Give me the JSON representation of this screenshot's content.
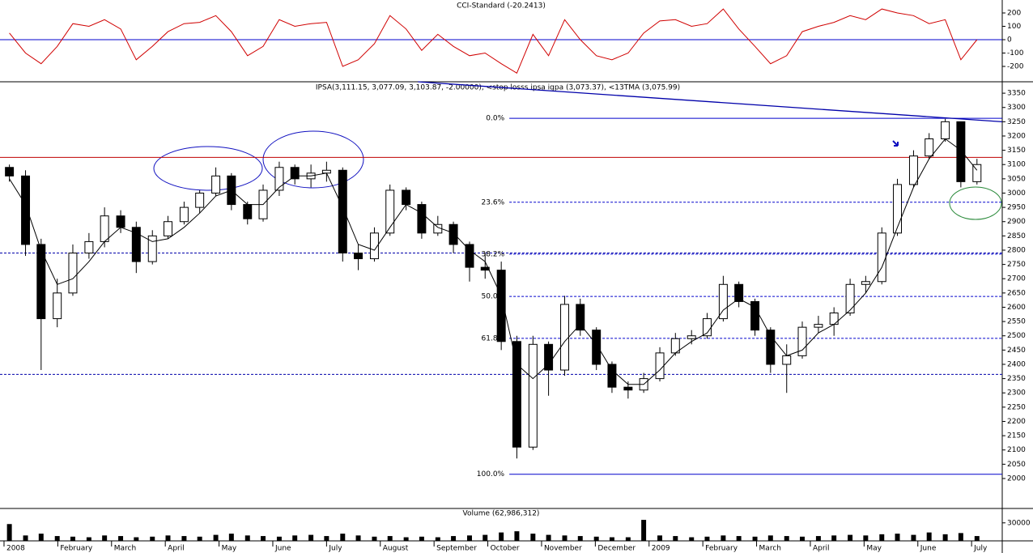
{
  "chart_data": [
    {
      "type": "line",
      "title": "CCI-Standard (-20.2413)",
      "color": "#d00000",
      "x": [
        0.1,
        0.4,
        0.69,
        0.99,
        1.28,
        1.58,
        1.87,
        2.17,
        2.46,
        2.76,
        3.05,
        3.35,
        3.64,
        3.94,
        4.23,
        4.53,
        4.82,
        5.12,
        5.41,
        5.71,
        6.0,
        6.3,
        6.59,
        6.89,
        7.18,
        7.48,
        7.77,
        8.07,
        8.36,
        8.66,
        8.95,
        9.25,
        9.54,
        9.84,
        10.13,
        10.43,
        10.72,
        11.02,
        11.31,
        11.61,
        11.9,
        12.2,
        12.49,
        12.79,
        13.08,
        13.38,
        13.67,
        13.97,
        14.26,
        14.56,
        14.85,
        15.15,
        15.44,
        15.74,
        16.03,
        16.33,
        16.62,
        16.92,
        17.21,
        17.51,
        17.8,
        18.1
      ],
      "values": [
        50,
        -100,
        -180,
        -50,
        120,
        100,
        150,
        80,
        -150,
        -50,
        60,
        120,
        130,
        180,
        60,
        -120,
        -50,
        150,
        100,
        120,
        130,
        -200,
        -150,
        -30,
        180,
        80,
        -80,
        40,
        -50,
        -120,
        -100,
        -180,
        -250,
        40,
        -120,
        150,
        0,
        -120,
        -150,
        -100,
        50,
        140,
        150,
        100,
        120,
        230,
        80,
        -50,
        -180,
        -120,
        60,
        100,
        130,
        180,
        150,
        230,
        200,
        180,
        120,
        150,
        -150,
        0
      ],
      "xlim": [
        -0.075,
        18.57
      ],
      "ylim": [
        -315,
        297
      ],
      "yticks": [
        200,
        100,
        0,
        -100,
        -200
      ],
      "hlines": [
        {
          "value": 0,
          "color": "#0000cc",
          "style": "solid"
        }
      ]
    },
    {
      "type": "candlestick",
      "title": "IPSA(3,111.15, 3,077.09, 3,103.87, -2.00000), <stop losss ipsa igpa (3,073.37), <13TMA (3,075.99)",
      "x": [
        0.1,
        0.4,
        0.69,
        0.99,
        1.28,
        1.58,
        1.87,
        2.17,
        2.46,
        2.76,
        3.05,
        3.35,
        3.64,
        3.94,
        4.23,
        4.53,
        4.82,
        5.12,
        5.41,
        5.71,
        6.0,
        6.3,
        6.59,
        6.89,
        7.18,
        7.48,
        7.77,
        8.07,
        8.36,
        8.66,
        8.95,
        9.25,
        9.54,
        9.84,
        10.13,
        10.43,
        10.72,
        11.02,
        11.31,
        11.61,
        11.9,
        12.2,
        12.49,
        12.79,
        13.08,
        13.38,
        13.67,
        13.97,
        14.26,
        14.56,
        14.85,
        15.15,
        15.44,
        15.74,
        16.03,
        16.33,
        16.62,
        16.92,
        17.21,
        17.51,
        17.8,
        18.1
      ],
      "open": [
        3090,
        3060,
        2820,
        2560,
        2650,
        2790,
        2830,
        2920,
        2880,
        2760,
        2850,
        2900,
        2950,
        3000,
        3060,
        2960,
        2910,
        3010,
        3090,
        3050,
        3070,
        3080,
        2790,
        2770,
        2860,
        3010,
        2960,
        2860,
        2890,
        2820,
        2740,
        2730,
        2480,
        2110,
        2470,
        2380,
        2610,
        2520,
        2400,
        2320,
        2310,
        2350,
        2440,
        2490,
        2500,
        2560,
        2680,
        2620,
        2520,
        2400,
        2430,
        2530,
        2540,
        2580,
        2680,
        2690,
        2860,
        3030,
        3130,
        3190,
        3250,
        3040
      ],
      "high": [
        3100,
        3080,
        2840,
        2700,
        2820,
        2860,
        2950,
        2940,
        2900,
        2870,
        2920,
        2970,
        3010,
        3090,
        3070,
        2970,
        3030,
        3110,
        3100,
        3100,
        3110,
        3090,
        2820,
        2880,
        3030,
        3020,
        2970,
        2920,
        2900,
        2830,
        2790,
        2760,
        2500,
        2500,
        2480,
        2640,
        2630,
        2530,
        2410,
        2340,
        2370,
        2460,
        2510,
        2520,
        2580,
        2710,
        2690,
        2630,
        2530,
        2470,
        2550,
        2570,
        2600,
        2700,
        2710,
        2880,
        3050,
        3150,
        3210,
        3260,
        3250,
        3120
      ],
      "low": [
        3040,
        2780,
        2380,
        2530,
        2640,
        2770,
        2810,
        2860,
        2720,
        2750,
        2840,
        2890,
        2930,
        2990,
        2940,
        2890,
        2900,
        2990,
        3030,
        3020,
        3040,
        2760,
        2730,
        2760,
        2850,
        2940,
        2840,
        2850,
        2790,
        2690,
        2700,
        2450,
        2070,
        2100,
        2290,
        2360,
        2500,
        2380,
        2300,
        2280,
        2300,
        2340,
        2430,
        2470,
        2490,
        2550,
        2600,
        2500,
        2370,
        2300,
        2420,
        2510,
        2500,
        2570,
        2650,
        2680,
        2850,
        3020,
        3120,
        3180,
        3020,
        3030
      ],
      "close": [
        3060,
        2820,
        2560,
        2650,
        2790,
        2830,
        2920,
        2880,
        2760,
        2850,
        2900,
        2950,
        3000,
        3060,
        2960,
        2910,
        3010,
        3090,
        3050,
        3070,
        3080,
        2790,
        2770,
        2860,
        3010,
        2960,
        2860,
        2890,
        2820,
        2740,
        2730,
        2480,
        2110,
        2470,
        2380,
        2610,
        2520,
        2400,
        2320,
        2310,
        2350,
        2440,
        2490,
        2500,
        2560,
        2680,
        2620,
        2520,
        2400,
        2430,
        2530,
        2540,
        2580,
        2680,
        2690,
        2860,
        3030,
        3130,
        3190,
        3250,
        3040,
        3100
      ],
      "up_color": "#ffffff",
      "down_color": "#000000",
      "tma": {
        "color": "#000000",
        "values": [
          3050,
          2960,
          2800,
          2680,
          2700,
          2760,
          2830,
          2880,
          2860,
          2830,
          2840,
          2880,
          2930,
          2990,
          3010,
          2960,
          2960,
          3020,
          3060,
          3060,
          3070,
          2950,
          2820,
          2800,
          2880,
          2960,
          2930,
          2880,
          2860,
          2800,
          2760,
          2640,
          2400,
          2350,
          2400,
          2480,
          2540,
          2470,
          2380,
          2330,
          2330,
          2380,
          2440,
          2480,
          2510,
          2590,
          2630,
          2600,
          2500,
          2430,
          2450,
          2510,
          2540,
          2590,
          2650,
          2740,
          2880,
          3020,
          3120,
          3190,
          3150,
          3080
        ]
      },
      "xlim": [
        -0.075,
        18.57
      ],
      "ylim": [
        1895,
        3390
      ],
      "yticks": [
        2000,
        2050,
        2100,
        2150,
        2200,
        2250,
        2300,
        2350,
        2400,
        2450,
        2500,
        2550,
        2600,
        2650,
        2700,
        2750,
        2800,
        2850,
        2900,
        2950,
        3000,
        3050,
        3100,
        3150,
        3200,
        3250,
        3300,
        3350
      ],
      "hlines": [
        {
          "value": 3125,
          "color": "#c00000",
          "style": "solid"
        },
        {
          "value": 2790,
          "color": "#0000aa",
          "style": "dashed"
        },
        {
          "value": 2365,
          "color": "#0000aa",
          "style": "dashed"
        }
      ],
      "fibonacci": {
        "start_x": 9.4,
        "color": "#0000cc",
        "levels": [
          {
            "value": 3262,
            "label": "0.0%",
            "style": "solid"
          },
          {
            "value": 2968,
            "label": "23.6%",
            "style": "dashed"
          },
          {
            "value": 2786,
            "label": "38.2%",
            "style": "dashed"
          },
          {
            "value": 2638,
            "label": "50.0%",
            "style": "dashed"
          },
          {
            "value": 2491,
            "label": "61.8%",
            "style": "dashed"
          },
          {
            "value": 2015,
            "label": "100.0%",
            "style": "solid"
          }
        ]
      },
      "trendline": {
        "color": "#0000aa",
        "x": [
          7.7,
          18.57
        ],
        "values": [
          3390,
          3250
        ]
      }
    },
    {
      "type": "bar",
      "title": "Volume (62,986,312)",
      "color": "#000000",
      "x": [
        0.1,
        0.4,
        0.69,
        0.99,
        1.28,
        1.58,
        1.87,
        2.17,
        2.46,
        2.76,
        3.05,
        3.35,
        3.64,
        3.94,
        4.23,
        4.53,
        4.82,
        5.12,
        5.41,
        5.71,
        6.0,
        6.3,
        6.59,
        6.89,
        7.18,
        7.48,
        7.77,
        8.07,
        8.36,
        8.66,
        8.95,
        9.25,
        9.54,
        9.84,
        10.13,
        10.43,
        10.72,
        11.02,
        11.31,
        11.61,
        11.9,
        12.2,
        12.49,
        12.79,
        13.08,
        13.38,
        13.67,
        13.97,
        14.26,
        14.56,
        14.85,
        15.15,
        15.44,
        15.74,
        16.03,
        16.33,
        16.62,
        16.92,
        17.21,
        17.51,
        17.8,
        18.1
      ],
      "values": [
        28000,
        9000,
        12000,
        8000,
        7000,
        6000,
        9000,
        8000,
        6000,
        7000,
        9000,
        8000,
        7000,
        10000,
        12000,
        9000,
        8000,
        7000,
        9000,
        10000,
        8000,
        12000,
        9000,
        7000,
        8000,
        6000,
        7000,
        6000,
        8000,
        9000,
        10000,
        14000,
        16000,
        12000,
        10000,
        9000,
        8000,
        7000,
        6000,
        6000,
        35000,
        9000,
        8000,
        6000,
        7000,
        9000,
        8000,
        7000,
        9000,
        8000,
        7000,
        8000,
        9000,
        10000,
        9000,
        11000,
        12000,
        10000,
        14000,
        11000,
        13000,
        8000
      ],
      "xlim": [
        -0.075,
        18.57
      ],
      "ylim": [
        0,
        54000
      ],
      "yticks": [
        30000
      ],
      "xticks": [
        {
          "value": 0,
          "label": "2008"
        },
        {
          "value": 1,
          "label": "February"
        },
        {
          "value": 2,
          "label": "March"
        },
        {
          "value": 3,
          "label": "April"
        },
        {
          "value": 4,
          "label": "May"
        },
        {
          "value": 5,
          "label": "June"
        },
        {
          "value": 6,
          "label": "July"
        },
        {
          "value": 7,
          "label": "August"
        },
        {
          "value": 8,
          "label": "September"
        },
        {
          "value": 9,
          "label": "October"
        },
        {
          "value": 10,
          "label": "November"
        },
        {
          "value": 11,
          "label": "December"
        },
        {
          "value": 12,
          "label": "2009"
        },
        {
          "value": 13,
          "label": "February"
        },
        {
          "value": 14,
          "label": "March"
        },
        {
          "value": 15,
          "label": "April"
        },
        {
          "value": 16,
          "label": "May"
        },
        {
          "value": 17,
          "label": "June"
        },
        {
          "value": 18,
          "label": "July"
        }
      ]
    }
  ]
}
